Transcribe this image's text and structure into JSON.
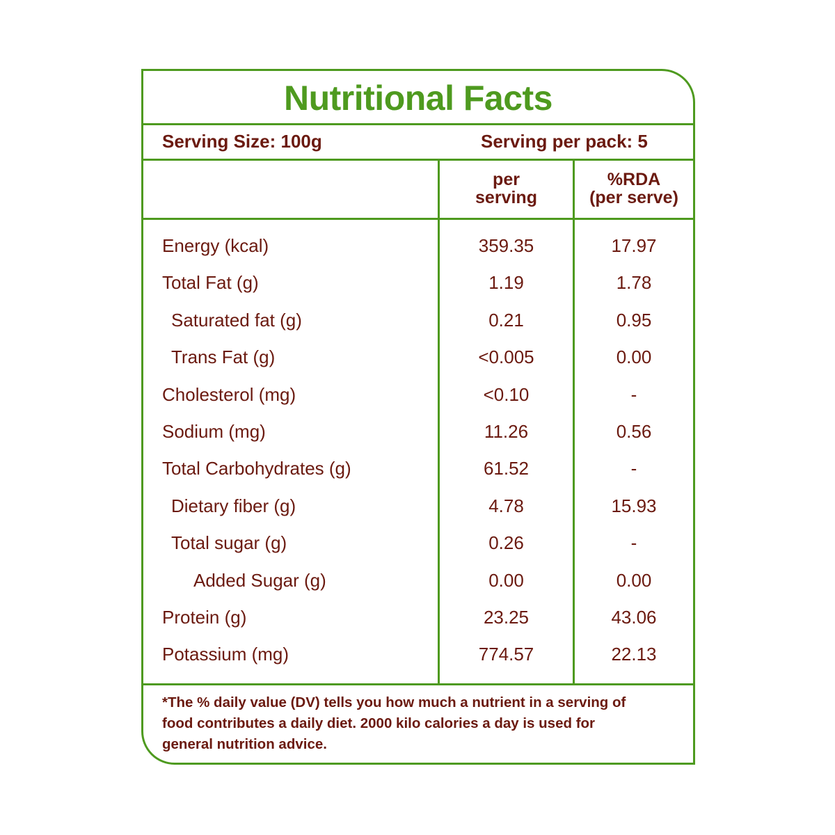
{
  "title": "Nutritional Facts",
  "serving_size": "Serving Size: 100g",
  "serving_per_pack": "Serving per pack: 5",
  "columns": {
    "per_serving": [
      "per",
      "serving"
    ],
    "rda": [
      "%RDA",
      "(per serve)"
    ]
  },
  "rows": [
    {
      "label": "Energy (kcal)",
      "per_serving": "359.35",
      "rda": "17.97",
      "indent": 0
    },
    {
      "label": "Total Fat (g)",
      "per_serving": "1.19",
      "rda": "1.78",
      "indent": 0
    },
    {
      "label": "Saturated fat (g)",
      "per_serving": "0.21",
      "rda": "0.95",
      "indent": 1
    },
    {
      "label": "Trans Fat (g)",
      "per_serving": "<0.005",
      "rda": "0.00",
      "indent": 1
    },
    {
      "label": "Cholesterol (mg)",
      "per_serving": "<0.10",
      "rda": "-",
      "indent": 0
    },
    {
      "label": "Sodium (mg)",
      "per_serving": "11.26",
      "rda": "0.56",
      "indent": 0
    },
    {
      "label": "Total Carbohydrates  (g)",
      "per_serving": "61.52",
      "rda": "-",
      "indent": 0
    },
    {
      "label": "Dietary fiber (g)",
      "per_serving": "4.78",
      "rda": "15.93",
      "indent": 1
    },
    {
      "label": "Total sugar (g)",
      "per_serving": "0.26",
      "rda": "-",
      "indent": 1
    },
    {
      "label": "Added Sugar (g)",
      "per_serving": "0.00",
      "rda": "0.00",
      "indent": 2
    },
    {
      "label": "Protein (g)",
      "per_serving": "23.25",
      "rda": "43.06",
      "indent": 0
    },
    {
      "label": "Potassium (mg)",
      "per_serving": "774.57",
      "rda": "22.13",
      "indent": 0
    }
  ],
  "footnote": "*The % daily value (DV) tells you how much a nutrient in a serving of food contributes a daily diet. 2000 kilo calories a day is used for general nutrition advice.",
  "colors": {
    "border": "#4e9a1f",
    "title": "#4e9a1f",
    "text": "#6b1a10"
  }
}
